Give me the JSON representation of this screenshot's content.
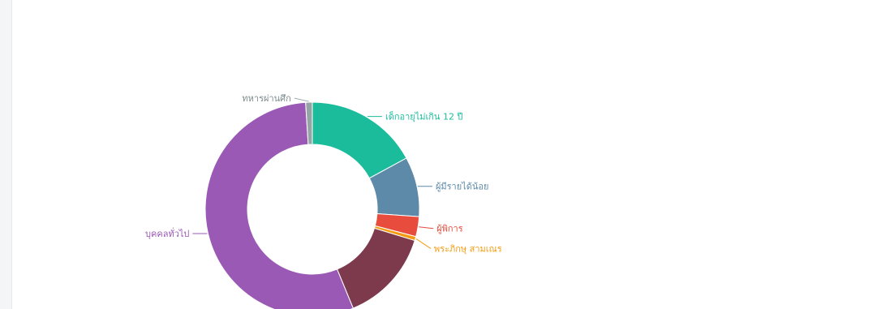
{
  "colors": {
    "background": "#ffffff",
    "rail": "#f4f5f7"
  },
  "chart_data": {
    "type": "pie",
    "variant": "donut",
    "title": "",
    "legend": "none",
    "slices": [
      {
        "name": "เด็กอายุไม่เกิน 12 ปี",
        "value": 17,
        "color": "#1abc9c"
      },
      {
        "name": "ผู้มีรายได้น้อย",
        "value": 9,
        "color": "#5d8aa8"
      },
      {
        "name": "ผู้พิการ",
        "value": 3,
        "color": "#e74c3c"
      },
      {
        "name": "พระภิกษุ สามเณร",
        "value": 0.6,
        "color": "#f39c12"
      },
      {
        "name": "",
        "value": 14,
        "color": "#7e3a4d"
      },
      {
        "name": "บุคคลทั่วไป",
        "value": 55,
        "color": "#9b59b6"
      },
      {
        "name": "ทหารผ่านศึก",
        "value": 1,
        "color": "#95a5a6"
      }
    ]
  }
}
